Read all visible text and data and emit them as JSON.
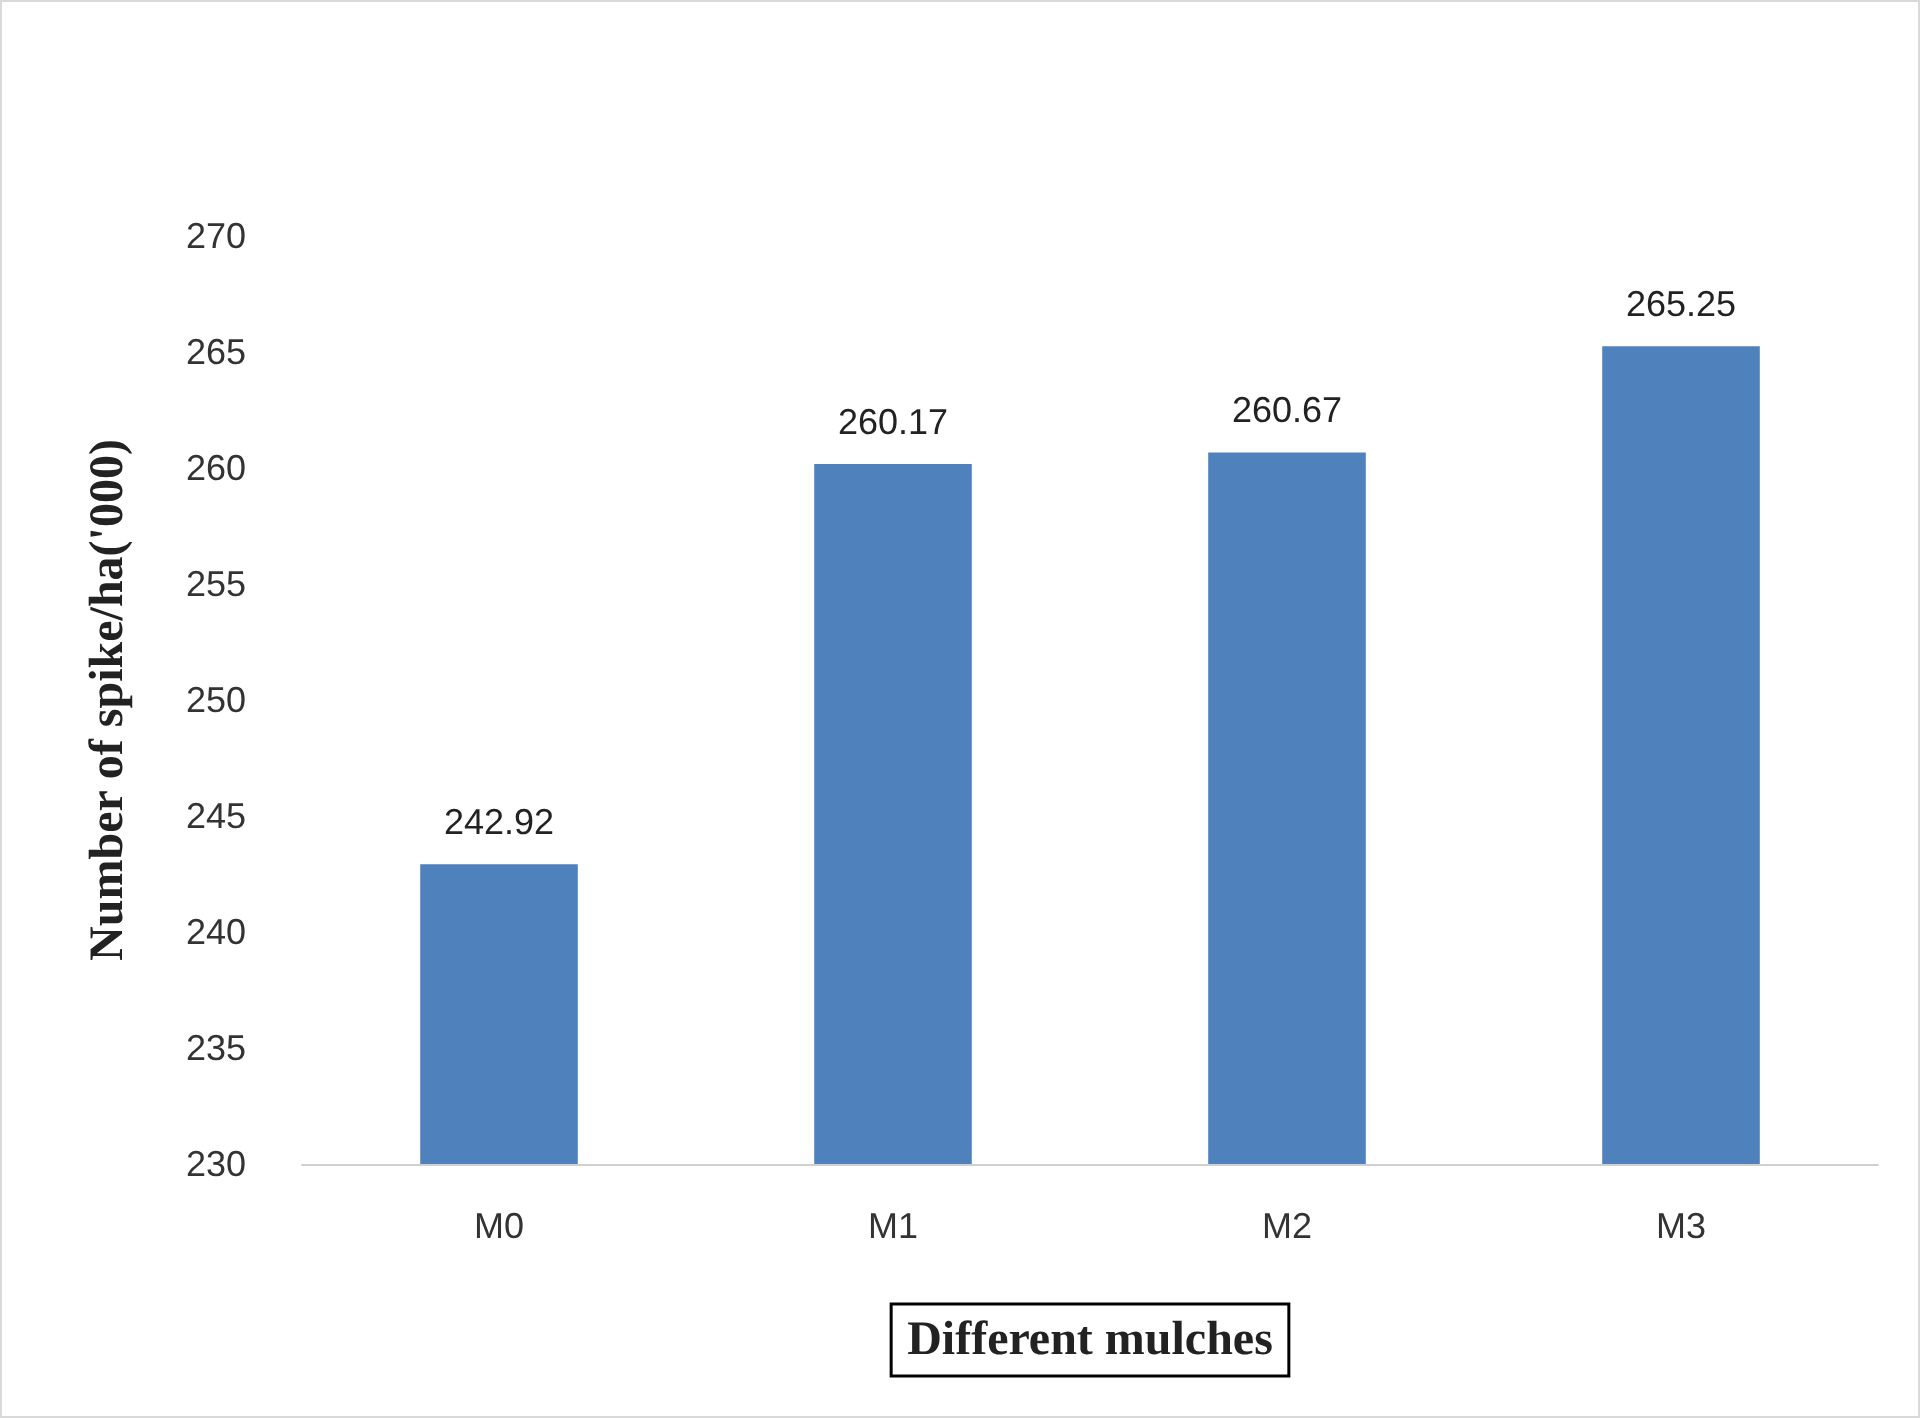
{
  "chart_data": {
    "type": "bar",
    "categories": [
      "M0",
      "M1",
      "M2",
      "M3"
    ],
    "values": [
      242.92,
      260.17,
      260.67,
      265.25
    ],
    "color": "#4f81bd",
    "xlabel": "Different mulches",
    "ylabel": "Number of spike/ha('000)",
    "ylim": [
      230,
      270
    ],
    "yticks": [
      230,
      235,
      240,
      245,
      250,
      255,
      260,
      265,
      270
    ],
    "data_labels": true,
    "grid": false
  }
}
